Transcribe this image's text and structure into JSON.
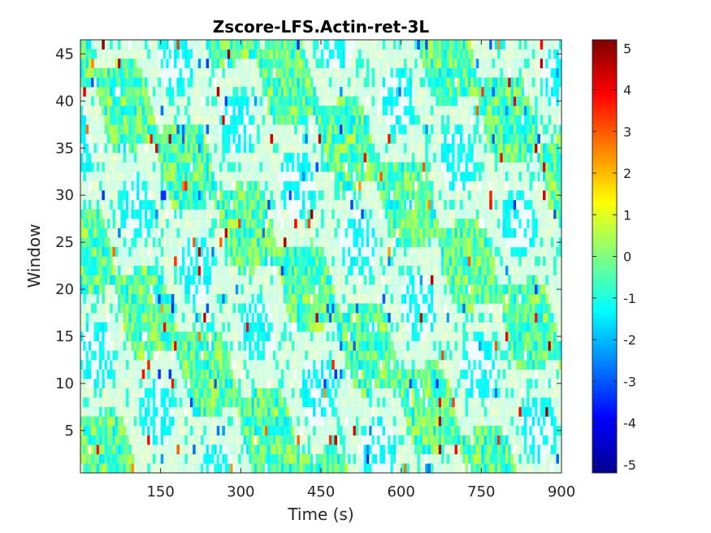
{
  "chart_data": {
    "type": "heatmap",
    "title": "Zscore-LFS.Actin-ret-3L",
    "xlabel": "Time (s)",
    "ylabel": "Window",
    "xlim": [
      0,
      900
    ],
    "ylim": [
      0.5,
      46.5
    ],
    "x_ticks": [
      150,
      300,
      450,
      600,
      750,
      900
    ],
    "y_ticks": [
      5,
      10,
      15,
      20,
      25,
      30,
      35,
      40,
      45
    ],
    "n_windows": 46,
    "n_frames": 180,
    "frame_interval_s": 5,
    "colormap": "jet",
    "color_limits": [
      -5.2,
      5.2
    ],
    "colorbar_ticks": [
      5,
      4,
      3,
      2,
      1,
      0,
      -1,
      -2,
      -3,
      -4,
      -5
    ],
    "grid": false,
    "colorbar_position": "right",
    "pattern_note": "Z-scored values mostly between -2 and 2 (green/cyan/light), diagonal banded structure, scattered extremes up to about +5 and down to about -3.5; white cells indicate missing values."
  }
}
